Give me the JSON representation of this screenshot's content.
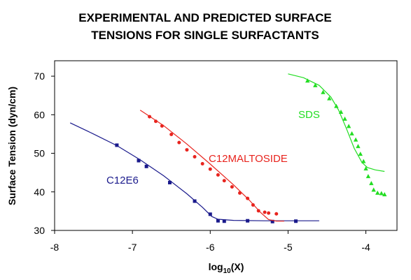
{
  "chart_data": {
    "type": "scatter",
    "title": "EXPERIMENTAL AND PREDICTED SURFACE TENSIONS FOR SINGLE SURFACTANTS",
    "title_lines": [
      "EXPERIMENTAL AND PREDICTED SURFACE",
      "TENSIONS FOR SINGLE SURFACTANTS"
    ],
    "xlabel_main": "log",
    "xlabel_sub": "10",
    "xlabel_tail": "(X)",
    "ylabel": "Surface Tension (dyn/cm)",
    "xlim": [
      -8,
      -3.6
    ],
    "ylim": [
      30,
      74
    ],
    "xticks": [
      -8,
      -7,
      -6,
      -5,
      -4
    ],
    "yticks": [
      30,
      40,
      50,
      60,
      70
    ],
    "grid": false,
    "legend": "none",
    "series": [
      {
        "name": "C12E6",
        "color": "#1a1a8c",
        "marker": "square",
        "points": [
          {
            "x": -7.2,
            "y": 52.1
          },
          {
            "x": -6.92,
            "y": 48.1
          },
          {
            "x": -6.82,
            "y": 46.6
          },
          {
            "x": -6.52,
            "y": 42.4
          },
          {
            "x": -6.2,
            "y": 37.6
          },
          {
            "x": -6.0,
            "y": 34.2
          },
          {
            "x": -5.9,
            "y": 32.5
          },
          {
            "x": -5.82,
            "y": 32.4
          },
          {
            "x": -5.52,
            "y": 32.5
          },
          {
            "x": -5.2,
            "y": 32.3
          },
          {
            "x": -4.9,
            "y": 32.4
          }
        ],
        "curve": [
          {
            "x": -7.8,
            "y": 57.9
          },
          {
            "x": -7.5,
            "y": 55.0
          },
          {
            "x": -7.2,
            "y": 52.0
          },
          {
            "x": -6.9,
            "y": 48.3
          },
          {
            "x": -6.6,
            "y": 44.2
          },
          {
            "x": -6.3,
            "y": 39.5
          },
          {
            "x": -6.1,
            "y": 36.0
          },
          {
            "x": -5.98,
            "y": 33.6
          },
          {
            "x": -5.9,
            "y": 32.9
          },
          {
            "x": -5.7,
            "y": 32.6
          },
          {
            "x": -5.3,
            "y": 32.5
          },
          {
            "x": -4.6,
            "y": 32.5
          }
        ]
      },
      {
        "name": "C12MALTOSIDE",
        "color": "#e8241e",
        "marker": "circle",
        "points": [
          {
            "x": -6.78,
            "y": 59.5
          },
          {
            "x": -6.7,
            "y": 58.3
          },
          {
            "x": -6.62,
            "y": 57.1
          },
          {
            "x": -6.5,
            "y": 54.9
          },
          {
            "x": -6.4,
            "y": 52.8
          },
          {
            "x": -6.3,
            "y": 50.9
          },
          {
            "x": -6.2,
            "y": 49.1
          },
          {
            "x": -6.1,
            "y": 47.3
          },
          {
            "x": -6.0,
            "y": 45.9
          },
          {
            "x": -5.9,
            "y": 44.4
          },
          {
            "x": -5.82,
            "y": 42.9
          },
          {
            "x": -5.72,
            "y": 41.3
          },
          {
            "x": -5.62,
            "y": 39.7
          },
          {
            "x": -5.52,
            "y": 38.3
          },
          {
            "x": -5.45,
            "y": 36.6
          },
          {
            "x": -5.38,
            "y": 35.1
          },
          {
            "x": -5.3,
            "y": 34.7
          },
          {
            "x": -5.25,
            "y": 34.5
          },
          {
            "x": -5.15,
            "y": 34.3
          }
        ],
        "curve": [
          {
            "x": -6.9,
            "y": 61.2
          },
          {
            "x": -6.6,
            "y": 57.2
          },
          {
            "x": -6.3,
            "y": 52.4
          },
          {
            "x": -6.0,
            "y": 47.2
          },
          {
            "x": -5.7,
            "y": 41.8
          },
          {
            "x": -5.5,
            "y": 37.9
          },
          {
            "x": -5.35,
            "y": 34.6
          },
          {
            "x": -5.25,
            "y": 32.8
          },
          {
            "x": -5.15,
            "y": 32.4
          },
          {
            "x": -5.05,
            "y": 32.4
          }
        ]
      },
      {
        "name": "SDS",
        "color": "#22dd22",
        "marker": "triangle",
        "points": [
          {
            "x": -4.75,
            "y": 68.8
          },
          {
            "x": -4.65,
            "y": 67.6
          },
          {
            "x": -4.55,
            "y": 65.8
          },
          {
            "x": -4.47,
            "y": 64.2
          },
          {
            "x": -4.38,
            "y": 62.2
          },
          {
            "x": -4.32,
            "y": 60.7
          },
          {
            "x": -4.27,
            "y": 58.9
          },
          {
            "x": -4.22,
            "y": 57.0
          },
          {
            "x": -4.18,
            "y": 55.1
          },
          {
            "x": -4.13,
            "y": 53.5
          },
          {
            "x": -4.1,
            "y": 51.8
          },
          {
            "x": -4.07,
            "y": 49.8
          },
          {
            "x": -4.03,
            "y": 47.9
          },
          {
            "x": -4.0,
            "y": 46.0
          },
          {
            "x": -3.97,
            "y": 44.0
          },
          {
            "x": -3.93,
            "y": 42.2
          },
          {
            "x": -3.9,
            "y": 40.5
          },
          {
            "x": -3.85,
            "y": 39.7
          },
          {
            "x": -3.8,
            "y": 39.6
          },
          {
            "x": -3.76,
            "y": 39.3
          }
        ],
        "curve": [
          {
            "x": -5.0,
            "y": 70.6
          },
          {
            "x": -4.8,
            "y": 69.6
          },
          {
            "x": -4.6,
            "y": 67.6
          },
          {
            "x": -4.45,
            "y": 64.6
          },
          {
            "x": -4.35,
            "y": 61.2
          },
          {
            "x": -4.25,
            "y": 56.4
          },
          {
            "x": -4.15,
            "y": 51.3
          },
          {
            "x": -4.05,
            "y": 47.6
          },
          {
            "x": -3.98,
            "y": 46.3
          },
          {
            "x": -3.88,
            "y": 45.7
          },
          {
            "x": -3.76,
            "y": 45.3
          }
        ]
      }
    ]
  }
}
